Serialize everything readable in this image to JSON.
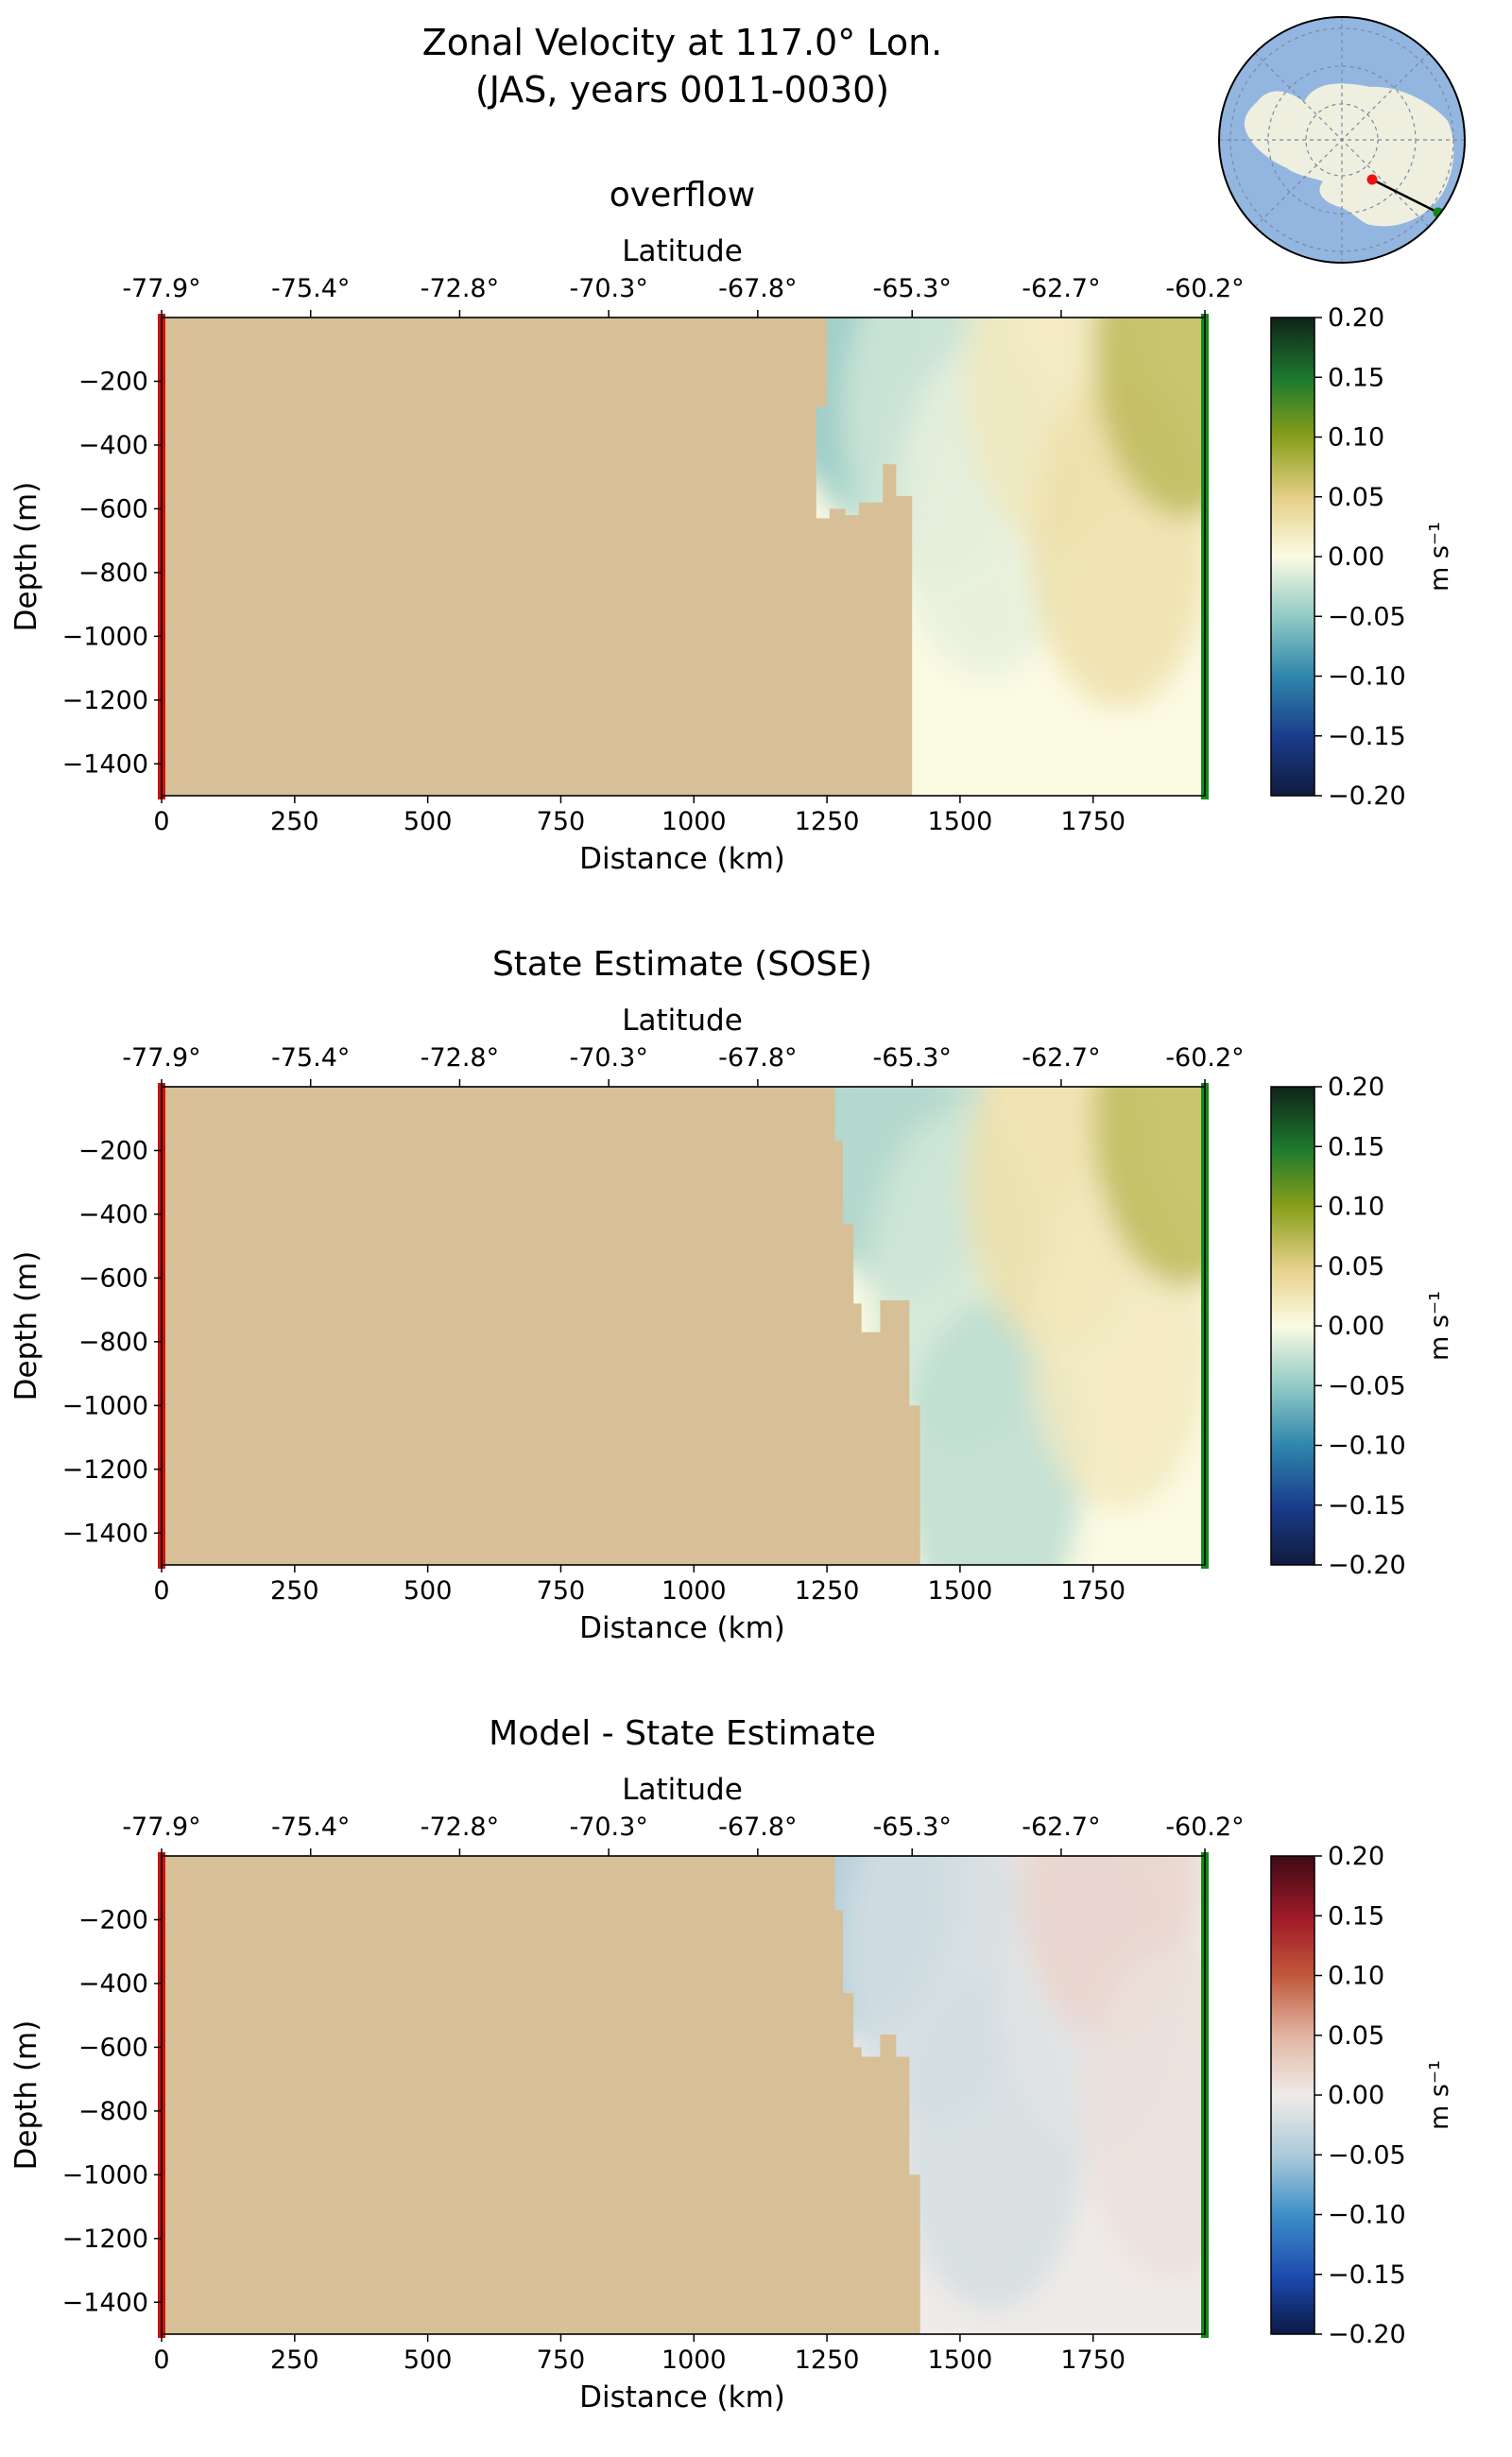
{
  "figure": {
    "title_line1": "Zonal Velocity at 117.0° Lon.",
    "title_line2": "(JAS, years 0011-0030)"
  },
  "colors": {
    "land": "#d7c097",
    "left_marker": "#cc1111",
    "right_marker": "#138a1b",
    "map_ocean": "#93b6e0",
    "map_land": "#efefe0",
    "section_line": "#000000",
    "start_point": "#ee1111",
    "end_point": "#118811"
  },
  "inset_map": {
    "type": "south-polar-stereographic",
    "grid": true
  },
  "chart_data": [
    {
      "type": "heatmap",
      "title": "overflow",
      "xlabel": "Distance (km)",
      "ylabel": "Depth (m)",
      "top_xlabel": "Latitude",
      "xlim": [
        0,
        1960
      ],
      "ylim": [
        -1500,
        0
      ],
      "x_ticks": [
        0,
        250,
        500,
        750,
        1000,
        1250,
        1500,
        1750
      ],
      "y_ticks": [
        -200,
        -400,
        -600,
        -800,
        -1000,
        -1200,
        -1400
      ],
      "lat_tick_labels": [
        "-77.9°",
        "-75.4°",
        "-72.8°",
        "-70.3°",
        "-67.8°",
        "-65.3°",
        "-62.7°",
        "-60.2°"
      ],
      "lat_tick_positions_km": [
        0,
        280,
        560,
        840,
        1120,
        1410,
        1690,
        1960
      ],
      "colormap": "diverging-blue-green-gold",
      "colorbar": {
        "label": "m s⁻¹",
        "ticks": [
          0.2,
          0.15,
          0.1,
          0.05,
          0.0,
          -0.05,
          -0.1,
          -0.15,
          -0.2
        ],
        "tick_labels": [
          "0.20",
          "0.15",
          "0.10",
          "0.05",
          "0.00",
          "−0.05",
          "−0.10",
          "−0.15",
          "−0.20"
        ]
      },
      "bathymetry_edge": [
        [
          1250,
          0
        ],
        [
          1250,
          -280
        ],
        [
          1230,
          -280
        ],
        [
          1230,
          -630
        ],
        [
          1255,
          -630
        ],
        [
          1255,
          -600
        ],
        [
          1285,
          -600
        ],
        [
          1285,
          -620
        ],
        [
          1310,
          -620
        ],
        [
          1310,
          -580
        ],
        [
          1355,
          -580
        ],
        [
          1355,
          -460
        ],
        [
          1380,
          -460
        ],
        [
          1380,
          -560
        ],
        [
          1410,
          -560
        ],
        [
          1410,
          -1500
        ]
      ],
      "velocity_field_m_s": [
        {
          "x": 1300,
          "z": -30,
          "u": -0.07
        },
        {
          "x": 1350,
          "z": -150,
          "u": -0.04
        },
        {
          "x": 1450,
          "z": -300,
          "u": -0.02
        },
        {
          "x": 1550,
          "z": -600,
          "u": -0.01
        },
        {
          "x": 1680,
          "z": -200,
          "u": 0.02
        },
        {
          "x": 1800,
          "z": -700,
          "u": 0.03
        },
        {
          "x": 1920,
          "z": -100,
          "u": 0.07
        }
      ]
    },
    {
      "type": "heatmap",
      "title": "State Estimate (SOSE)",
      "xlabel": "Distance (km)",
      "ylabel": "Depth (m)",
      "top_xlabel": "Latitude",
      "xlim": [
        0,
        1960
      ],
      "ylim": [
        -1500,
        0
      ],
      "x_ticks": [
        0,
        250,
        500,
        750,
        1000,
        1250,
        1500,
        1750
      ],
      "y_ticks": [
        -200,
        -400,
        -600,
        -800,
        -1000,
        -1200,
        -1400
      ],
      "lat_tick_labels": [
        "-77.9°",
        "-75.4°",
        "-72.8°",
        "-70.3°",
        "-67.8°",
        "-65.3°",
        "-62.7°",
        "-60.2°"
      ],
      "lat_tick_positions_km": [
        0,
        280,
        560,
        840,
        1120,
        1410,
        1690,
        1960
      ],
      "colormap": "diverging-blue-green-gold",
      "colorbar": {
        "label": "m s⁻¹",
        "ticks": [
          0.2,
          0.15,
          0.1,
          0.05,
          0.0,
          -0.05,
          -0.1,
          -0.15,
          -0.2
        ],
        "tick_labels": [
          "0.20",
          "0.15",
          "0.10",
          "0.05",
          "0.00",
          "−0.05",
          "−0.10",
          "−0.15",
          "−0.20"
        ]
      },
      "bathymetry_edge": [
        [
          1265,
          0
        ],
        [
          1265,
          -170
        ],
        [
          1280,
          -170
        ],
        [
          1280,
          -430
        ],
        [
          1300,
          -430
        ],
        [
          1300,
          -680
        ],
        [
          1315,
          -680
        ],
        [
          1315,
          -770
        ],
        [
          1350,
          -770
        ],
        [
          1350,
          -670
        ],
        [
          1405,
          -670
        ],
        [
          1405,
          -1000
        ],
        [
          1425,
          -1000
        ],
        [
          1425,
          -1500
        ]
      ],
      "velocity_field_m_s": [
        {
          "x": 1320,
          "z": -30,
          "u": -0.06
        },
        {
          "x": 1400,
          "z": -150,
          "u": -0.03
        },
        {
          "x": 1500,
          "z": -600,
          "u": -0.02
        },
        {
          "x": 1560,
          "z": -1200,
          "u": -0.03
        },
        {
          "x": 1680,
          "z": -300,
          "u": 0.03
        },
        {
          "x": 1800,
          "z": -800,
          "u": 0.02
        },
        {
          "x": 1920,
          "z": -100,
          "u": 0.07
        }
      ]
    },
    {
      "type": "heatmap",
      "title": "Model - State Estimate",
      "xlabel": "Distance (km)",
      "ylabel": "Depth (m)",
      "top_xlabel": "Latitude",
      "xlim": [
        0,
        1960
      ],
      "ylim": [
        -1500,
        0
      ],
      "x_ticks": [
        0,
        250,
        500,
        750,
        1000,
        1250,
        1500,
        1750
      ],
      "y_ticks": [
        -200,
        -400,
        -600,
        -800,
        -1000,
        -1200,
        -1400
      ],
      "lat_tick_labels": [
        "-77.9°",
        "-75.4°",
        "-72.8°",
        "-70.3°",
        "-67.8°",
        "-65.3°",
        "-62.7°",
        "-60.2°"
      ],
      "lat_tick_positions_km": [
        0,
        280,
        560,
        840,
        1120,
        1410,
        1690,
        1960
      ],
      "colormap": "diverging-blue-red",
      "colorbar": {
        "label": "m s⁻¹",
        "ticks": [
          0.2,
          0.15,
          0.1,
          0.05,
          0.0,
          -0.05,
          -0.1,
          -0.15,
          -0.2
        ],
        "tick_labels": [
          "0.20",
          "0.15",
          "0.10",
          "0.05",
          "0.00",
          "−0.05",
          "−0.10",
          "−0.15",
          "−0.20"
        ]
      },
      "bathymetry_edge": [
        [
          1265,
          0
        ],
        [
          1265,
          -170
        ],
        [
          1280,
          -170
        ],
        [
          1280,
          -430
        ],
        [
          1300,
          -430
        ],
        [
          1300,
          -600
        ],
        [
          1315,
          -600
        ],
        [
          1315,
          -630
        ],
        [
          1350,
          -630
        ],
        [
          1350,
          -560
        ],
        [
          1380,
          -560
        ],
        [
          1380,
          -630
        ],
        [
          1405,
          -630
        ],
        [
          1405,
          -1000
        ],
        [
          1425,
          -1000
        ],
        [
          1425,
          -1500
        ]
      ],
      "velocity_field_m_s": [
        {
          "x": 1320,
          "z": -40,
          "u": -0.05
        },
        {
          "x": 1450,
          "z": -300,
          "u": -0.02
        },
        {
          "x": 1560,
          "z": -900,
          "u": -0.02
        },
        {
          "x": 1740,
          "z": -400,
          "u": -0.01
        },
        {
          "x": 1780,
          "z": -60,
          "u": 0.02
        },
        {
          "x": 1900,
          "z": -800,
          "u": 0.01
        }
      ]
    }
  ]
}
